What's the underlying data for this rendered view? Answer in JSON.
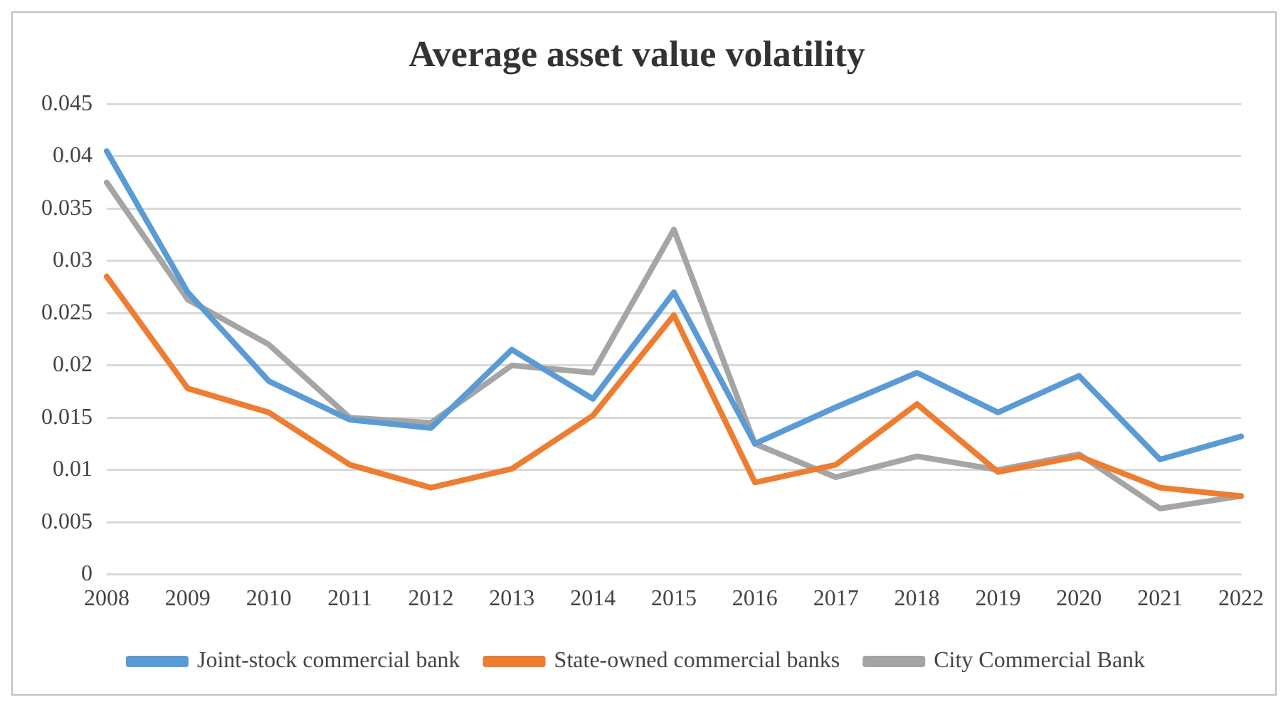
{
  "chart_data": {
    "type": "line",
    "title": "Average asset value volatility",
    "categories": [
      "2008",
      "2009",
      "2010",
      "2011",
      "2012",
      "2013",
      "2014",
      "2015",
      "2016",
      "2017",
      "2018",
      "2019",
      "2020",
      "2021",
      "2022"
    ],
    "series": [
      {
        "name": "Joint-stock commercial bank",
        "color": "#5b9bd5",
        "values": [
          0.0405,
          0.027,
          0.0185,
          0.0148,
          0.014,
          0.0215,
          0.0168,
          0.027,
          0.0125,
          0.016,
          0.0193,
          0.0155,
          0.019,
          0.011,
          0.0132
        ]
      },
      {
        "name": "State-owned commercial banks",
        "color": "#ed7d31",
        "values": [
          0.0285,
          0.0178,
          0.0155,
          0.0105,
          0.0083,
          0.0101,
          0.0152,
          0.0248,
          0.0088,
          0.0105,
          0.0163,
          0.0098,
          0.0113,
          0.0083,
          0.0075
        ]
      },
      {
        "name": "City Commercial Bank",
        "color": "#a5a5a5",
        "values": [
          0.0375,
          0.0263,
          0.022,
          0.015,
          0.0145,
          0.02,
          0.0193,
          0.033,
          0.0125,
          0.0093,
          0.0113,
          0.01,
          0.0115,
          0.0063,
          0.0075
        ]
      }
    ],
    "ylim": [
      0,
      0.045
    ],
    "yticks": [
      0,
      0.005,
      0.01,
      0.015,
      0.02,
      0.025,
      0.03,
      0.035,
      0.04,
      0.045
    ],
    "grid": "y",
    "legend": "bottom",
    "marker": "none",
    "line_style": "solid"
  }
}
